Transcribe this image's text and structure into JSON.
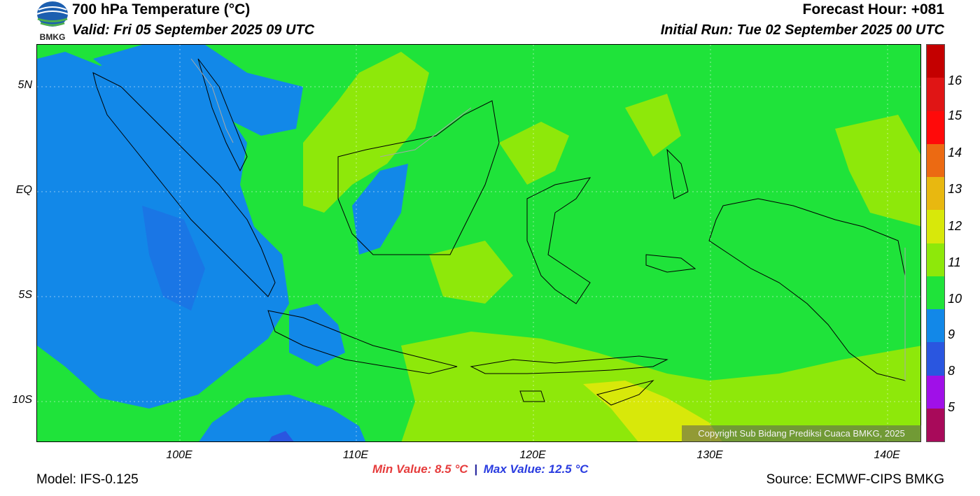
{
  "header": {
    "title": "700 hPa Temperature (°C)",
    "valid": "Valid: Fri 05 September 2025 09 UTC",
    "forecast_hour": "Forecast Hour: +081",
    "initial_run": "Initial Run: Tue 02 September 2025 00 UTC",
    "logo_text": "BMKG"
  },
  "map": {
    "lat_labels": [
      "5N",
      "EQ",
      "5S",
      "10S"
    ],
    "lon_labels": [
      "100E",
      "110E",
      "120E",
      "130E",
      "140E"
    ],
    "copyright": "Copyright Sub Bidang Prediksi Cuaca BMKG, 2025",
    "colors": {
      "base_green": "#1fe33a",
      "light_green": "#8ee80a",
      "blue": "#1288e8",
      "dark_blue": "#2a56e0",
      "yellow": "#d8e80a"
    }
  },
  "colorbar": {
    "labels": [
      "16",
      "15",
      "14",
      "13",
      "12",
      "11",
      "10",
      "9",
      "8",
      "5"
    ],
    "colors": [
      "#c40000",
      "#e01515",
      "#ff0a0a",
      "#ec6a12",
      "#e8b810",
      "#d8e80a",
      "#8ee80a",
      "#1fe33a",
      "#1288e8",
      "#2a56e0",
      "#a010e8",
      "#a80a5a"
    ]
  },
  "footer": {
    "min_label": "Min Value: 8.5 °C",
    "separator": "|",
    "max_label": "Max Value: 12.5 °C",
    "model": "Model: IFS-0.125",
    "source": "Source: ECMWF-CIPS BMKG"
  }
}
